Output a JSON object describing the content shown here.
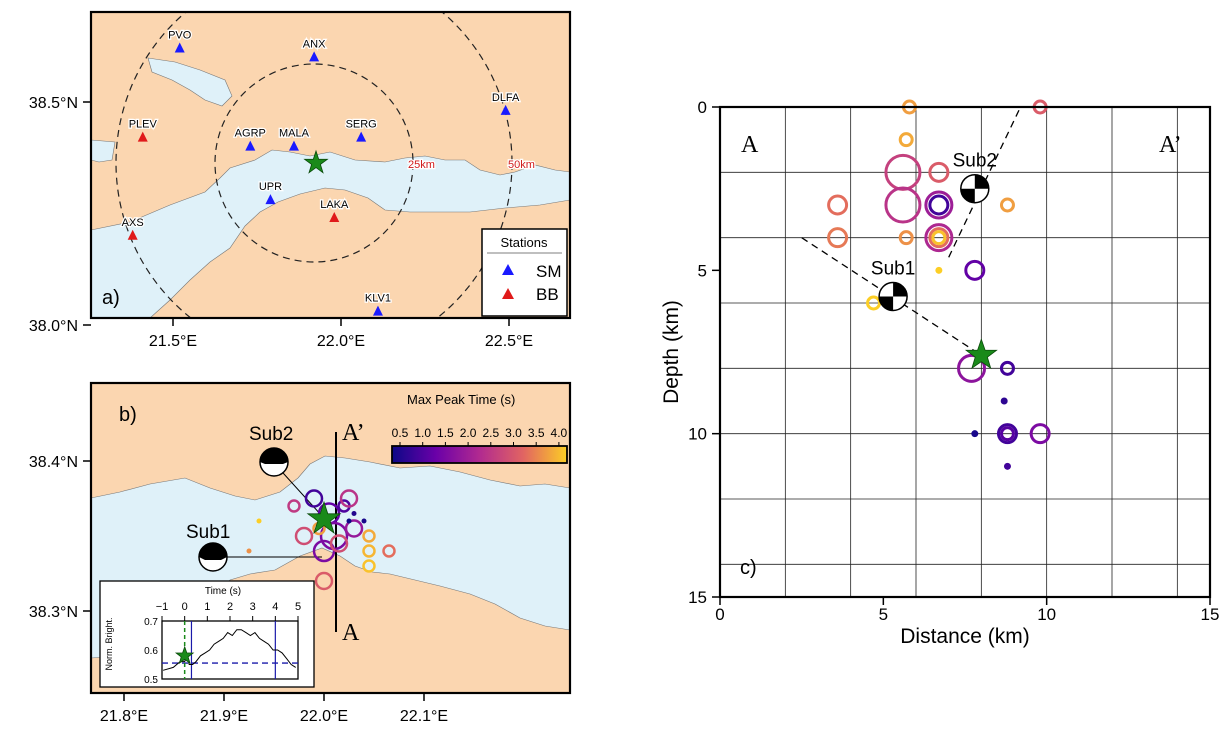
{
  "panel_a": {
    "label": "a)",
    "x_ticks": [
      {
        "lon": 21.5,
        "label": "21.5°E"
      },
      {
        "lon": 22.0,
        "label": "22.0°E"
      },
      {
        "lon": 22.5,
        "label": "22.5°E"
      }
    ],
    "y_ticks": [
      {
        "lat": 38.0,
        "label": "38.0°N"
      },
      {
        "lat": 38.5,
        "label": "38.5°N"
      }
    ],
    "stations": [
      {
        "name": "PVO",
        "lon": 21.52,
        "lat": 38.62,
        "type": "SM"
      },
      {
        "name": "ANX",
        "lon": 21.92,
        "lat": 38.6,
        "type": "SM"
      },
      {
        "name": "DLFA",
        "lon": 22.49,
        "lat": 38.48,
        "type": "SM"
      },
      {
        "name": "PLEV",
        "lon": 21.41,
        "lat": 38.42,
        "type": "BB"
      },
      {
        "name": "AGRP",
        "lon": 21.73,
        "lat": 38.4,
        "type": "SM"
      },
      {
        "name": "MALA",
        "lon": 21.86,
        "lat": 38.4,
        "type": "SM"
      },
      {
        "name": "SERG",
        "lon": 22.06,
        "lat": 38.42,
        "type": "SM"
      },
      {
        "name": "UPR",
        "lon": 21.79,
        "lat": 38.28,
        "type": "SM"
      },
      {
        "name": "LAKA",
        "lon": 21.98,
        "lat": 38.24,
        "type": "BB"
      },
      {
        "name": "AXS",
        "lon": 21.38,
        "lat": 38.2,
        "type": "BB"
      },
      {
        "name": "KLV1",
        "lon": 22.11,
        "lat": 38.03,
        "type": "SM"
      }
    ],
    "epicenter": {
      "lon": 21.94,
      "lat": 38.36
    },
    "ring_labels": [
      "25km",
      "50km"
    ],
    "legend": {
      "title": "Stations",
      "items": [
        {
          "label": "SM",
          "color": "#1a1aff"
        },
        {
          "label": "BB",
          "color": "#e01a1a"
        }
      ]
    }
  },
  "panel_b": {
    "label": "b)",
    "x_ticks": [
      {
        "lon": 21.8,
        "label": "21.8°E"
      },
      {
        "lon": 21.9,
        "label": "21.9°E"
      },
      {
        "lon": 22.0,
        "label": "22.0°E"
      },
      {
        "lon": 22.1,
        "label": "22.1°E"
      }
    ],
    "y_ticks": [
      {
        "lat": 38.3,
        "label": "38.3°N"
      },
      {
        "lat": 38.4,
        "label": "38.4°N"
      }
    ],
    "colorbar": {
      "title": "Max Peak Time (s)",
      "range": [
        0.5,
        4.0
      ],
      "ticks": [
        "0.5",
        "1.0",
        "1.5",
        "2.0",
        "2.5",
        "3.0",
        "3.5",
        "4.0"
      ]
    },
    "section_labels": {
      "top": "A’",
      "bottom": "A"
    },
    "sources": [
      {
        "name": "Sub2",
        "lon": 21.88,
        "lat": 38.4
      },
      {
        "name": "Sub1",
        "lon": 21.85,
        "lat": 38.34
      }
    ],
    "epicenter": {
      "lon": 21.94,
      "lat": 38.36
    },
    "events": [
      {
        "lon": 21.93,
        "lat": 38.375,
        "size": 2,
        "t": 1.0
      },
      {
        "lon": 21.945,
        "lat": 38.365,
        "size": 3,
        "t": 1.3
      },
      {
        "lon": 21.95,
        "lat": 38.35,
        "size": 4,
        "t": 1.6
      },
      {
        "lon": 21.94,
        "lat": 38.34,
        "size": 3,
        "t": 1.6
      },
      {
        "lon": 21.955,
        "lat": 38.345,
        "size": 2,
        "t": 2.8
      },
      {
        "lon": 21.96,
        "lat": 38.37,
        "size": 1,
        "t": 1.1
      },
      {
        "lon": 21.965,
        "lat": 38.375,
        "size": 2,
        "t": 2.4
      },
      {
        "lon": 21.97,
        "lat": 38.355,
        "size": 2,
        "t": 1.9
      },
      {
        "lon": 21.97,
        "lat": 38.365,
        "size": 0,
        "t": 0.7
      },
      {
        "lon": 21.98,
        "lat": 38.36,
        "size": 0,
        "t": 0.6
      },
      {
        "lon": 21.965,
        "lat": 38.36,
        "size": 0,
        "t": 0.5
      },
      {
        "lon": 21.91,
        "lat": 38.37,
        "size": 1,
        "t": 2.5
      },
      {
        "lon": 21.92,
        "lat": 38.35,
        "size": 2,
        "t": 2.8
      },
      {
        "lon": 21.94,
        "lat": 38.32,
        "size": 2,
        "t": 3.0
      },
      {
        "lon": 21.985,
        "lat": 38.35,
        "size": 1,
        "t": 3.7
      },
      {
        "lon": 21.985,
        "lat": 38.34,
        "size": 1,
        "t": 3.8
      },
      {
        "lon": 21.985,
        "lat": 38.33,
        "size": 1,
        "t": 3.9
      },
      {
        "lon": 22.005,
        "lat": 38.34,
        "size": 1,
        "t": 3.2
      },
      {
        "lon": 21.865,
        "lat": 38.34,
        "size": 0,
        "t": 3.5
      },
      {
        "lon": 21.875,
        "lat": 38.36,
        "size": 0,
        "t": 4.0
      },
      {
        "lon": 21.935,
        "lat": 38.355,
        "size": 1,
        "t": 3.6
      }
    ],
    "inset": {
      "title": "Time (s)",
      "ylabel": "Norm. Bright.",
      "x_ticks": [
        "−1",
        "0",
        "1",
        "2",
        "3",
        "4",
        "5"
      ],
      "y_ticks": [
        "0.5",
        "0.6",
        "0.7"
      ],
      "xlim": [
        -1,
        5
      ],
      "ylim": [
        0.5,
        0.7
      ],
      "threshold": 0.555,
      "bounds": [
        0.3,
        4.0
      ],
      "trace": [
        [
          -0.95,
          0.53
        ],
        [
          -0.5,
          0.54
        ],
        [
          -0.2,
          0.56
        ],
        [
          0.0,
          0.56
        ],
        [
          0.1,
          0.58
        ],
        [
          0.2,
          0.55
        ],
        [
          0.35,
          0.55
        ],
        [
          0.5,
          0.56
        ],
        [
          0.7,
          0.58
        ],
        [
          0.9,
          0.59
        ],
        [
          1.1,
          0.6
        ],
        [
          1.3,
          0.62
        ],
        [
          1.5,
          0.63
        ],
        [
          1.7,
          0.64
        ],
        [
          1.9,
          0.66
        ],
        [
          2.1,
          0.65
        ],
        [
          2.3,
          0.67
        ],
        [
          2.5,
          0.67
        ],
        [
          2.7,
          0.66
        ],
        [
          2.9,
          0.65
        ],
        [
          3.1,
          0.66
        ],
        [
          3.3,
          0.64
        ],
        [
          3.5,
          0.63
        ],
        [
          3.7,
          0.62
        ],
        [
          3.9,
          0.6
        ],
        [
          4.1,
          0.6
        ],
        [
          4.3,
          0.59
        ],
        [
          4.5,
          0.57
        ],
        [
          4.7,
          0.55
        ],
        [
          4.9,
          0.54
        ]
      ]
    }
  },
  "chart_data": {
    "type": "scatter",
    "title": "",
    "label": "c)",
    "xlabel": "Distance (km)",
    "ylabel": "Depth (km)",
    "xlim": [
      0,
      15
    ],
    "ylim": [
      0,
      15
    ],
    "y_inverted": true,
    "x_ticks": [
      "0",
      "5",
      "10",
      "15"
    ],
    "y_ticks": [
      "0",
      "5",
      "10",
      "15"
    ],
    "grid": true,
    "section_labels": {
      "left": "A",
      "right": "A’"
    },
    "colorbar_range": [
      0.5,
      4.0
    ],
    "sources": [
      {
        "name": "Sub2",
        "distance": 7.8,
        "depth": 2.5
      },
      {
        "name": "Sub1",
        "distance": 5.3,
        "depth": 5.8
      }
    ],
    "mainshock": {
      "distance": 8.0,
      "depth": 7.6
    },
    "fault_traces": [
      {
        "points": [
          [
            7.0,
            4.6
          ],
          [
            9.2,
            0.0
          ]
        ]
      },
      {
        "points": [
          [
            2.5,
            4.0
          ],
          [
            8.0,
            7.6
          ]
        ]
      }
    ],
    "points": [
      {
        "distance": 5.8,
        "depth": 0.0,
        "size": 1,
        "t": 3.6
      },
      {
        "distance": 5.7,
        "depth": 1.0,
        "size": 1,
        "t": 3.7
      },
      {
        "distance": 9.8,
        "depth": 0.0,
        "size": 1,
        "t": 3.0
      },
      {
        "distance": 5.6,
        "depth": 2.0,
        "size": 4,
        "t": 2.6
      },
      {
        "distance": 5.6,
        "depth": 3.0,
        "size": 4,
        "t": 2.4
      },
      {
        "distance": 6.7,
        "depth": 2.0,
        "size": 2,
        "t": 3.0
      },
      {
        "distance": 6.7,
        "depth": 3.0,
        "size": 3,
        "t": 2.0
      },
      {
        "distance": 6.7,
        "depth": 3.0,
        "size": 2,
        "t": 1.0
      },
      {
        "distance": 6.7,
        "depth": 4.0,
        "size": 3,
        "t": 2.2
      },
      {
        "distance": 6.7,
        "depth": 4.0,
        "size": 2,
        "t": 3.2
      },
      {
        "distance": 6.7,
        "depth": 4.0,
        "size": 1,
        "t": 3.9
      },
      {
        "distance": 5.7,
        "depth": 4.0,
        "size": 1,
        "t": 3.5
      },
      {
        "distance": 3.6,
        "depth": 3.0,
        "size": 2,
        "t": 3.2
      },
      {
        "distance": 3.6,
        "depth": 4.0,
        "size": 2,
        "t": 3.3
      },
      {
        "distance": 8.8,
        "depth": 3.0,
        "size": 1,
        "t": 3.6
      },
      {
        "distance": 6.7,
        "depth": 5.0,
        "size": 0,
        "t": 4.0
      },
      {
        "distance": 7.8,
        "depth": 5.0,
        "size": 2,
        "t": 1.3
      },
      {
        "distance": 4.7,
        "depth": 6.0,
        "size": 1,
        "t": 4.0
      },
      {
        "distance": 7.7,
        "depth": 8.0,
        "size": 3,
        "t": 1.8
      },
      {
        "distance": 8.8,
        "depth": 8.0,
        "size": 1,
        "t": 1.0
      },
      {
        "distance": 8.7,
        "depth": 9.0,
        "size": 0,
        "t": 0.8
      },
      {
        "distance": 7.8,
        "depth": 10.0,
        "size": 0,
        "t": 0.6
      },
      {
        "distance": 8.8,
        "depth": 10.0,
        "size": 2,
        "t": 1.0
      },
      {
        "distance": 8.8,
        "depth": 10.0,
        "size": 1,
        "t": 1.2
      },
      {
        "distance": 9.8,
        "depth": 10.0,
        "size": 2,
        "t": 1.6
      },
      {
        "distance": 8.8,
        "depth": 11.0,
        "size": 0,
        "t": 1.0
      }
    ]
  }
}
